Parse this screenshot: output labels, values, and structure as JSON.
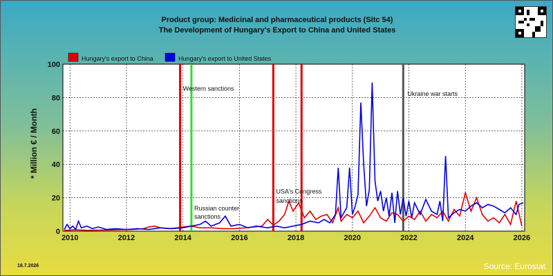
{
  "footer": {
    "date": "18.7.2026",
    "source": "Source: Eurostat"
  },
  "chart_data": {
    "type": "line",
    "title_line1": "Product group: Medicinal and pharmaceutical products (Sitc 54)",
    "title_line2": "The Development of Hungary's Export to  China and United States",
    "xlabel": "",
    "ylabel": "* Million € / Month",
    "xlim": [
      2009.75,
      2026.1
    ],
    "ylim": [
      0,
      100
    ],
    "yticks": [
      0,
      20,
      40,
      60,
      80,
      100
    ],
    "xticks": [
      2010,
      2012,
      2014,
      2016,
      2018,
      2020,
      2022,
      2024,
      2026
    ],
    "grid": true,
    "legend_position": "top-left",
    "series": [
      {
        "name": "Hungary's export to China",
        "color": "#e00000",
        "points": [
          [
            2009.8,
            0.5
          ],
          [
            2010.2,
            0.8
          ],
          [
            2010.6,
            0.5
          ],
          [
            2011.0,
            0.6
          ],
          [
            2011.4,
            0.7
          ],
          [
            2011.8,
            0.9
          ],
          [
            2012.2,
            1.0
          ],
          [
            2012.6,
            1.5
          ],
          [
            2012.8,
            2.5
          ],
          [
            2013.0,
            3.0
          ],
          [
            2013.2,
            2.0
          ],
          [
            2013.5,
            1.5
          ],
          [
            2013.8,
            2.0
          ],
          [
            2014.0,
            2.5
          ],
          [
            2014.3,
            3.0
          ],
          [
            2014.6,
            2.0
          ],
          [
            2015.0,
            2.0
          ],
          [
            2015.4,
            1.5
          ],
          [
            2015.8,
            1.5
          ],
          [
            2016.2,
            2.0
          ],
          [
            2016.5,
            2.5
          ],
          [
            2016.8,
            3.0
          ],
          [
            2017.0,
            7.0
          ],
          [
            2017.2,
            3.5
          ],
          [
            2017.4,
            6.0
          ],
          [
            2017.6,
            10.0
          ],
          [
            2017.75,
            18.0
          ],
          [
            2017.9,
            12.0
          ],
          [
            2018.1,
            17.0
          ],
          [
            2018.3,
            8.0
          ],
          [
            2018.5,
            12.0
          ],
          [
            2018.7,
            7.0
          ],
          [
            2018.9,
            9.0
          ],
          [
            2019.1,
            10.0
          ],
          [
            2019.3,
            5.0
          ],
          [
            2019.5,
            14.0
          ],
          [
            2019.6,
            6.0
          ],
          [
            2019.8,
            10.0
          ],
          [
            2020.0,
            8.0
          ],
          [
            2020.2,
            12.0
          ],
          [
            2020.4,
            5.0
          ],
          [
            2020.6,
            9.0
          ],
          [
            2020.8,
            14.0
          ],
          [
            2021.0,
            8.0
          ],
          [
            2021.2,
            6.0
          ],
          [
            2021.4,
            11.0
          ],
          [
            2021.6,
            10.0
          ],
          [
            2021.8,
            6.0
          ],
          [
            2022.0,
            9.0
          ],
          [
            2022.2,
            7.0
          ],
          [
            2022.4,
            12.0
          ],
          [
            2022.6,
            6.0
          ],
          [
            2022.8,
            10.0
          ],
          [
            2023.0,
            8.0
          ],
          [
            2023.2,
            12.0
          ],
          [
            2023.4,
            6.0
          ],
          [
            2023.6,
            13.0
          ],
          [
            2023.8,
            9.0
          ],
          [
            2024.0,
            23.0
          ],
          [
            2024.2,
            12.0
          ],
          [
            2024.4,
            20.0
          ],
          [
            2024.6,
            10.0
          ],
          [
            2024.8,
            6.0
          ],
          [
            2025.0,
            8.0
          ],
          [
            2025.2,
            5.0
          ],
          [
            2025.4,
            10.0
          ],
          [
            2025.6,
            4.0
          ],
          [
            2025.8,
            18.0
          ],
          [
            2026.0,
            3.0
          ]
        ]
      },
      {
        "name": "Hungary's export to United States",
        "color": "#0000dd",
        "points": [
          [
            2009.8,
            1.0
          ],
          [
            2009.9,
            4.0
          ],
          [
            2010.0,
            1.5
          ],
          [
            2010.1,
            3.0
          ],
          [
            2010.2,
            1.0
          ],
          [
            2010.3,
            6.0
          ],
          [
            2010.4,
            2.0
          ],
          [
            2010.6,
            3.0
          ],
          [
            2010.8,
            1.5
          ],
          [
            2011.0,
            2.5
          ],
          [
            2011.3,
            1.0
          ],
          [
            2011.6,
            1.5
          ],
          [
            2012.0,
            1.0
          ],
          [
            2012.4,
            1.5
          ],
          [
            2012.8,
            1.0
          ],
          [
            2013.2,
            2.0
          ],
          [
            2013.6,
            1.5
          ],
          [
            2014.0,
            2.0
          ],
          [
            2014.3,
            3.0
          ],
          [
            2014.6,
            4.0
          ],
          [
            2014.8,
            6.0
          ],
          [
            2015.0,
            3.0
          ],
          [
            2015.3,
            5.0
          ],
          [
            2015.5,
            9.0
          ],
          [
            2015.7,
            3.0
          ],
          [
            2016.0,
            4.0
          ],
          [
            2016.3,
            2.0
          ],
          [
            2016.6,
            3.0
          ],
          [
            2017.0,
            2.0
          ],
          [
            2017.3,
            3.0
          ],
          [
            2017.6,
            2.0
          ],
          [
            2017.9,
            3.0
          ],
          [
            2018.2,
            4.0
          ],
          [
            2018.5,
            6.0
          ],
          [
            2018.8,
            5.0
          ],
          [
            2019.0,
            7.0
          ],
          [
            2019.2,
            5.0
          ],
          [
            2019.4,
            10.0
          ],
          [
            2019.5,
            38.0
          ],
          [
            2019.6,
            8.0
          ],
          [
            2019.8,
            14.0
          ],
          [
            2019.9,
            38.0
          ],
          [
            2020.0,
            10.0
          ],
          [
            2020.1,
            15.0
          ],
          [
            2020.2,
            22.0
          ],
          [
            2020.3,
            77.0
          ],
          [
            2020.4,
            40.0
          ],
          [
            2020.5,
            15.0
          ],
          [
            2020.6,
            25.0
          ],
          [
            2020.7,
            89.0
          ],
          [
            2020.8,
            30.0
          ],
          [
            2020.9,
            18.0
          ],
          [
            2021.0,
            24.0
          ],
          [
            2021.1,
            12.0
          ],
          [
            2021.2,
            20.0
          ],
          [
            2021.3,
            9.0
          ],
          [
            2021.4,
            23.0
          ],
          [
            2021.5,
            5.0
          ],
          [
            2021.6,
            24.0
          ],
          [
            2021.7,
            10.0
          ],
          [
            2021.8,
            20.0
          ],
          [
            2021.9,
            9.0
          ],
          [
            2022.0,
            18.0
          ],
          [
            2022.1,
            8.0
          ],
          [
            2022.2,
            17.0
          ],
          [
            2022.4,
            10.0
          ],
          [
            2022.6,
            19.0
          ],
          [
            2022.8,
            12.0
          ],
          [
            2023.0,
            10.0
          ],
          [
            2023.1,
            18.0
          ],
          [
            2023.2,
            6.0
          ],
          [
            2023.3,
            45.0
          ],
          [
            2023.4,
            8.0
          ],
          [
            2023.6,
            11.0
          ],
          [
            2023.8,
            13.0
          ],
          [
            2024.0,
            12.0
          ],
          [
            2024.2,
            15.0
          ],
          [
            2024.4,
            17.0
          ],
          [
            2024.6,
            14.0
          ],
          [
            2024.8,
            16.0
          ],
          [
            2025.0,
            15.0
          ],
          [
            2025.2,
            13.0
          ],
          [
            2025.4,
            11.0
          ],
          [
            2025.6,
            14.0
          ],
          [
            2025.8,
            10.0
          ],
          [
            2025.9,
            16.0
          ],
          [
            2026.05,
            17.0
          ]
        ]
      }
    ],
    "event_lines": [
      {
        "x": 2013.9,
        "color": "#e00000",
        "label": ""
      },
      {
        "x": 2014.3,
        "color": "#33dd33",
        "label": ""
      },
      {
        "x": 2017.2,
        "color": "#e00000",
        "label": ""
      },
      {
        "x": 2018.2,
        "color": "#e00000",
        "label": ""
      },
      {
        "x": 2021.8,
        "color": "#555555",
        "label": ""
      }
    ],
    "annotations": [
      {
        "x": 2014.0,
        "y": 84,
        "text": "Western sanctions"
      },
      {
        "x": 2014.4,
        "y": 12.5,
        "text": "Russian counter"
      },
      {
        "x": 2014.4,
        "y": 7.5,
        "text": "sanctions"
      },
      {
        "x": 2017.3,
        "y": 22.5,
        "text": "USA's Congress"
      },
      {
        "x": 2017.3,
        "y": 17.0,
        "text": "sanctions"
      },
      {
        "x": 2021.95,
        "y": 81,
        "text": "Ukraine war starts"
      }
    ]
  }
}
